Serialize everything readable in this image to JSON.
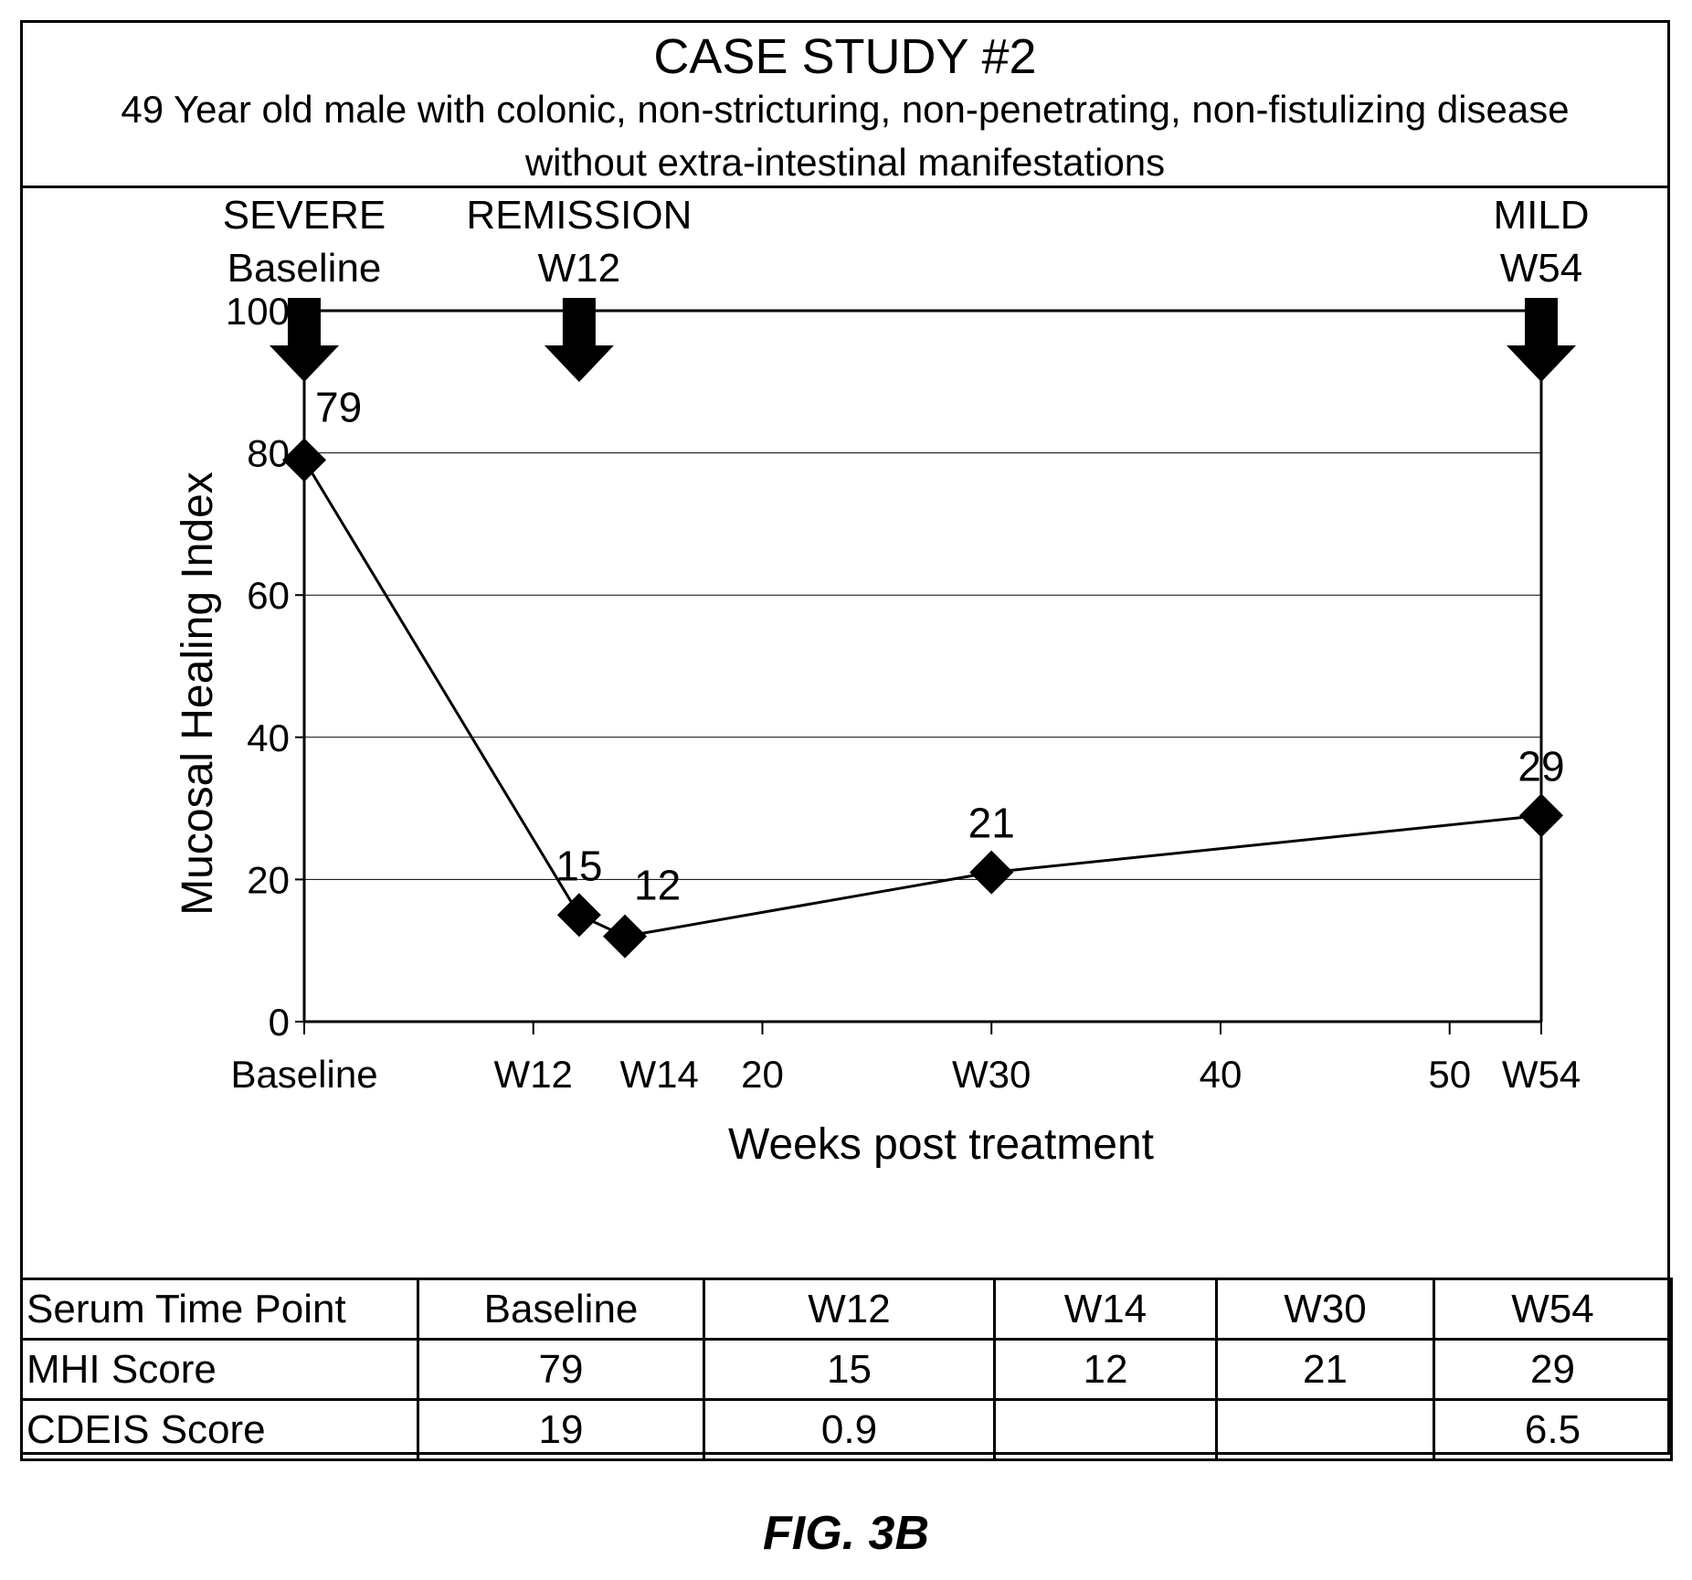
{
  "header": {
    "title": "CASE STUDY #2",
    "subtitle_line1": "49 Year old male with colonic, non-stricturing, non-penetrating, non-fistulizing disease",
    "subtitle_line2": "without extra-intestinal manifestations"
  },
  "chart_data": {
    "type": "line",
    "xlabel": "Weeks post treatment",
    "ylabel": "Mucosal Healing Index",
    "xlim": [
      0,
      54
    ],
    "ylim": [
      0,
      100
    ],
    "y_ticks": [
      0,
      20,
      40,
      60,
      80,
      100
    ],
    "x_ticks": [
      {
        "value": 0,
        "label": "Baseline"
      },
      {
        "value": 10,
        "label": ""
      },
      {
        "value": 20,
        "label": ""
      },
      {
        "value": 30,
        "label": ""
      },
      {
        "value": 40,
        "label": ""
      },
      {
        "value": 50,
        "label": ""
      },
      {
        "value": 54,
        "label": ""
      }
    ],
    "x_tick_labels": [
      {
        "value": 0,
        "label": "Baseline"
      },
      {
        "value": 10,
        "label": "W12"
      },
      {
        "value": 15.5,
        "label": "W14"
      },
      {
        "value": 20,
        "label": "20"
      },
      {
        "value": 30,
        "label": "W30"
      },
      {
        "value": 40,
        "label": "40"
      },
      {
        "value": 50,
        "label": "50"
      },
      {
        "value": 54,
        "label": "W54"
      }
    ],
    "grid": true,
    "series": [
      {
        "marker": "diamond",
        "color": "#000000",
        "points": [
          {
            "x": 0,
            "y": 79,
            "label": "79"
          },
          {
            "x": 12,
            "y": 15,
            "label": "15"
          },
          {
            "x": 14,
            "y": 12,
            "label": "12"
          },
          {
            "x": 30,
            "y": 21,
            "label": "21"
          },
          {
            "x": 54,
            "y": 29,
            "label": "29"
          }
        ]
      }
    ],
    "markers": [
      {
        "x": 0,
        "status": "SEVERE",
        "timepoint": "Baseline"
      },
      {
        "x": 12,
        "status": "REMISSION",
        "timepoint": "W12"
      },
      {
        "x": 54,
        "status": "MILD",
        "timepoint": "W54"
      }
    ]
  },
  "table": {
    "rows": [
      [
        "Serum Time Point",
        "Baseline",
        "W12",
        "W14",
        "W30",
        "W54"
      ],
      [
        "MHI Score",
        "79",
        "15",
        "12",
        "21",
        "29"
      ],
      [
        "CDEIS Score",
        "19",
        "0.9",
        "",
        "",
        "6.5"
      ]
    ]
  },
  "figure_label": "FIG. 3B"
}
